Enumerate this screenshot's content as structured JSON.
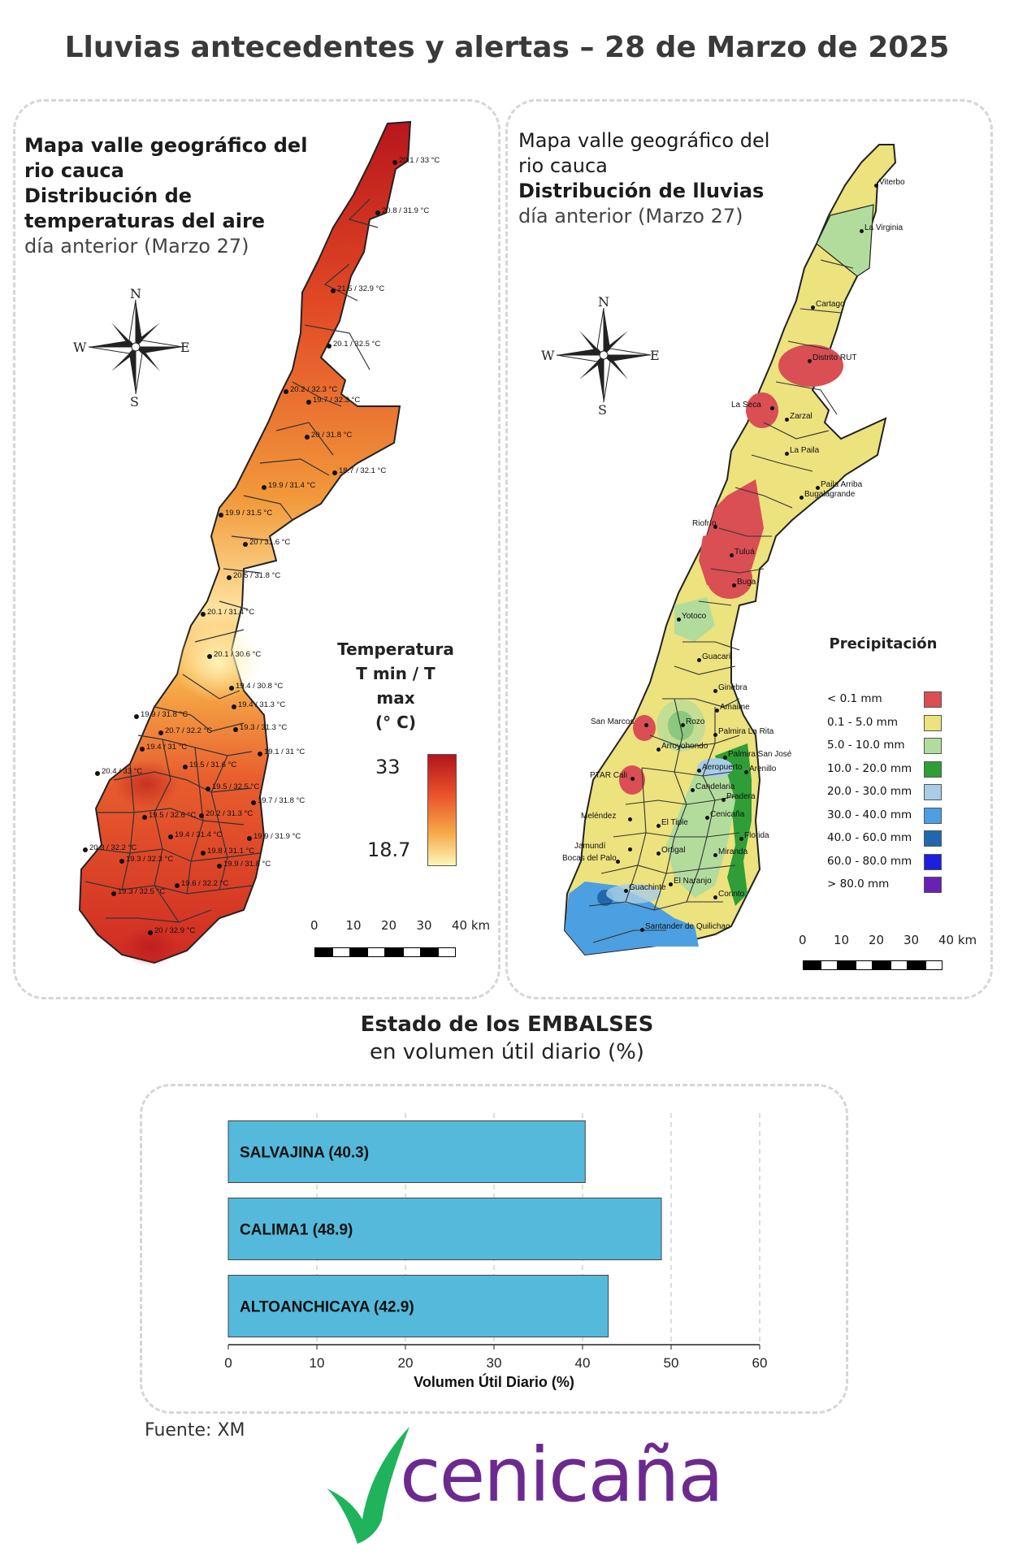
{
  "page_title": "Lluvias antecedentes y alertas – 28 de Marzo de 2025",
  "temp_map": {
    "title_lines": [
      "Mapa valle geográfico del",
      "rio cauca"
    ],
    "subtitle_bold_lines": [
      "Distribución de",
      "temperaturas del aire"
    ],
    "date_line": "día anterior (Marzo 27)",
    "compass": {
      "n": "N",
      "s": "S",
      "e": "E",
      "w": "W"
    },
    "legend_title_lines": [
      "Temperatura",
      "T min / T max",
      "(° C)"
    ],
    "legend_max": "33",
    "legend_min": "18.7",
    "scale_labels": [
      "0",
      "10",
      "20",
      "30",
      "40 km"
    ],
    "stations": [
      "20.1 / 33 °C",
      "20.8 / 31.9 °C",
      "21.5 / 32.9 °C",
      "20.1 / 32.5 °C",
      "20.2 / 32.3 °C",
      "19.7 / 32.3 °C",
      "20 / 31.8 °C",
      "18.7 / 32.1 °C",
      "19.9 / 31.4 °C",
      "19.9 / 31.5 °C",
      "20 / 31.6 °C",
      "20.5 / 31.8 °C",
      "20.1 / 31.4 °C",
      "20.1 / 30.6 °C",
      "19.4 / 30.8 °C",
      "19.4 / 31.3 °C",
      "19.9 / 31.8 °C",
      "20.7 / 32.2 °C",
      "19.3 / 31.3 °C",
      "19.4 / 31 °C",
      "19.1 / 31 °C",
      "20.4 / 33 °C",
      "19.5 / 31.6 °C",
      "19.5 / 32.5 °C",
      "19.7 / 31.8 °C",
      "19.5 / 32.6 °C",
      "20.2 / 31.3 °C",
      "19.4 / 31.4 °C",
      "19.9 / 31.9 °C",
      "20.3 / 32.2 °C",
      "19.8 / 31.1 °C",
      "19.3 / 32.3 °C",
      "19.9 / 31.8 °C",
      "19.6 / 32.2 °C",
      "19.3 / 32.5 °C",
      "20 / 32.9 °C"
    ]
  },
  "rain_map": {
    "title_lines": [
      "Mapa valle geográfico del",
      "rio cauca"
    ],
    "subtitle_bold": "Distribución de lluvias",
    "date_line": "día anterior (Marzo 27)",
    "compass": {
      "n": "N",
      "s": "S",
      "e": "E",
      "w": "W"
    },
    "legend_title": "Precipitación",
    "legend": [
      {
        "label": "< 0.1 mm",
        "color": "#d94f53"
      },
      {
        "label": "0.1 - 5.0 mm",
        "color": "#ece27e"
      },
      {
        "label": "5.0 - 10.0 mm",
        "color": "#b2dc9c"
      },
      {
        "label": "10.0 - 20.0 mm",
        "color": "#2f9e37"
      },
      {
        "label": "20.0 - 30.0 mm",
        "color": "#a9cde6"
      },
      {
        "label": "30.0 - 40.0 mm",
        "color": "#4c9fe0"
      },
      {
        "label": "40.0 - 60.0 mm",
        "color": "#2068ae"
      },
      {
        "label": "60.0 - 80.0 mm",
        "color": "#1d1ee0"
      },
      {
        "label": "> 80.0 mm",
        "color": "#6a1fb5"
      }
    ],
    "scale_labels": [
      "0",
      "10",
      "20",
      "30",
      "40 km"
    ],
    "stations": [
      "Viterbo",
      "La Virginia",
      "Cartago",
      "Distrito RUT",
      "La Seca",
      "Zarzal",
      "La Paila",
      "Paila Arriba",
      "Bugalagrande",
      "Riofrío",
      "Tuluá",
      "Buga",
      "Yotoco",
      "Guacarí",
      "Ginebra",
      "Amaime",
      "San Marcos",
      "Rozo",
      "Palmira La Rita",
      "Arroyohondo",
      "Palmira San José",
      "Aeropuerto",
      "Aeropuerto",
      "Arenillo",
      "PTAR Cali",
      "Candelaria",
      "Pradera",
      "Meléndez",
      "El Tiple",
      "Cenicaña",
      "Florida",
      "Jamundí",
      "Bocas del Palo",
      "Ortigal",
      "Miranda",
      "El Naranjo",
      "Guachinte",
      "Corinto",
      "Santander de Quilichao"
    ]
  },
  "reservoirs": {
    "title": "Estado de los EMBALSES",
    "subtitle": "en volumen útil diario (%)",
    "source": "Fuente: XM"
  },
  "chart_data": {
    "type": "bar",
    "orientation": "horizontal",
    "categories": [
      "SALVAJINA (40.3)",
      "CALIMA1 (48.9)",
      "ALTOANCHICAYA (42.9)"
    ],
    "values": [
      40.3,
      48.9,
      42.9
    ],
    "xlabel": "Volumen Útil Diario (%)",
    "ylabel": "",
    "xlim": [
      0,
      60
    ],
    "xticks": [
      "0",
      "10",
      "20",
      "30",
      "40",
      "50",
      "60"
    ],
    "grid": true,
    "bar_color": "#54b9da"
  },
  "logo": {
    "text": "cenicaña",
    "colors": {
      "green": "#1fb35c",
      "purple": "#6c2a8f"
    }
  }
}
